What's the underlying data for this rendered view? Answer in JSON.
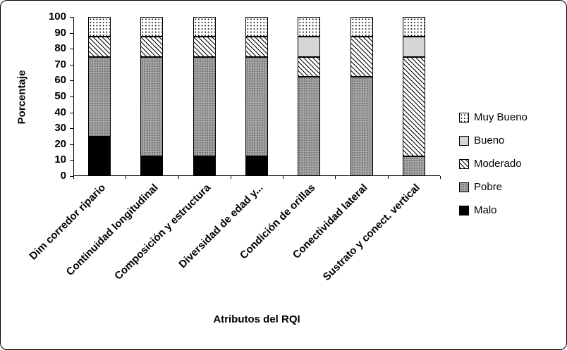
{
  "chart_data": {
    "type": "bar",
    "stacked": true,
    "percent": true,
    "title": "",
    "xlabel": "Atributos del RQI",
    "ylabel": "Porcentaje",
    "ylim": [
      0,
      100
    ],
    "yticks": [
      0,
      10,
      20,
      30,
      40,
      50,
      60,
      70,
      80,
      90,
      100
    ],
    "grid": false,
    "categories": [
      "Dim corredor ripario",
      "Continuidad longitudinal",
      "Composición y estructura",
      "Diversidad de edad y...",
      "Condición de orillas",
      "Conectividad lateral",
      "Sustrato y conect. vertical"
    ],
    "series": [
      {
        "name": "Malo",
        "pattern": "solid-black",
        "values": [
          25,
          12.5,
          12.5,
          12.5,
          0,
          0,
          0
        ]
      },
      {
        "name": "Pobre",
        "pattern": "gray-texture",
        "values": [
          50,
          62.5,
          62.5,
          62.5,
          62.5,
          62.5,
          12.5
        ]
      },
      {
        "name": "Moderado",
        "pattern": "diagonal-hatch",
        "values": [
          12.5,
          12.5,
          12.5,
          12.5,
          12.5,
          25,
          62.5
        ]
      },
      {
        "name": "Bueno",
        "pattern": "light-gray",
        "values": [
          0,
          0,
          0,
          0,
          12.5,
          0,
          12.5
        ]
      },
      {
        "name": "Muy Bueno",
        "pattern": "white-dots",
        "values": [
          12.5,
          12.5,
          12.5,
          12.5,
          12.5,
          12.5,
          12.5
        ]
      }
    ],
    "legend": {
      "position": "right",
      "entries": [
        "Muy Bueno",
        "Bueno",
        "Moderado",
        "Pobre",
        "Malo"
      ]
    }
  },
  "colors": {
    "malo": "#000000",
    "pobre": "#a3a3a3",
    "bueno": "#d6d6d6",
    "hatch_and_dots": "#000000",
    "segment_border": "#000000",
    "background": "#ffffff"
  }
}
